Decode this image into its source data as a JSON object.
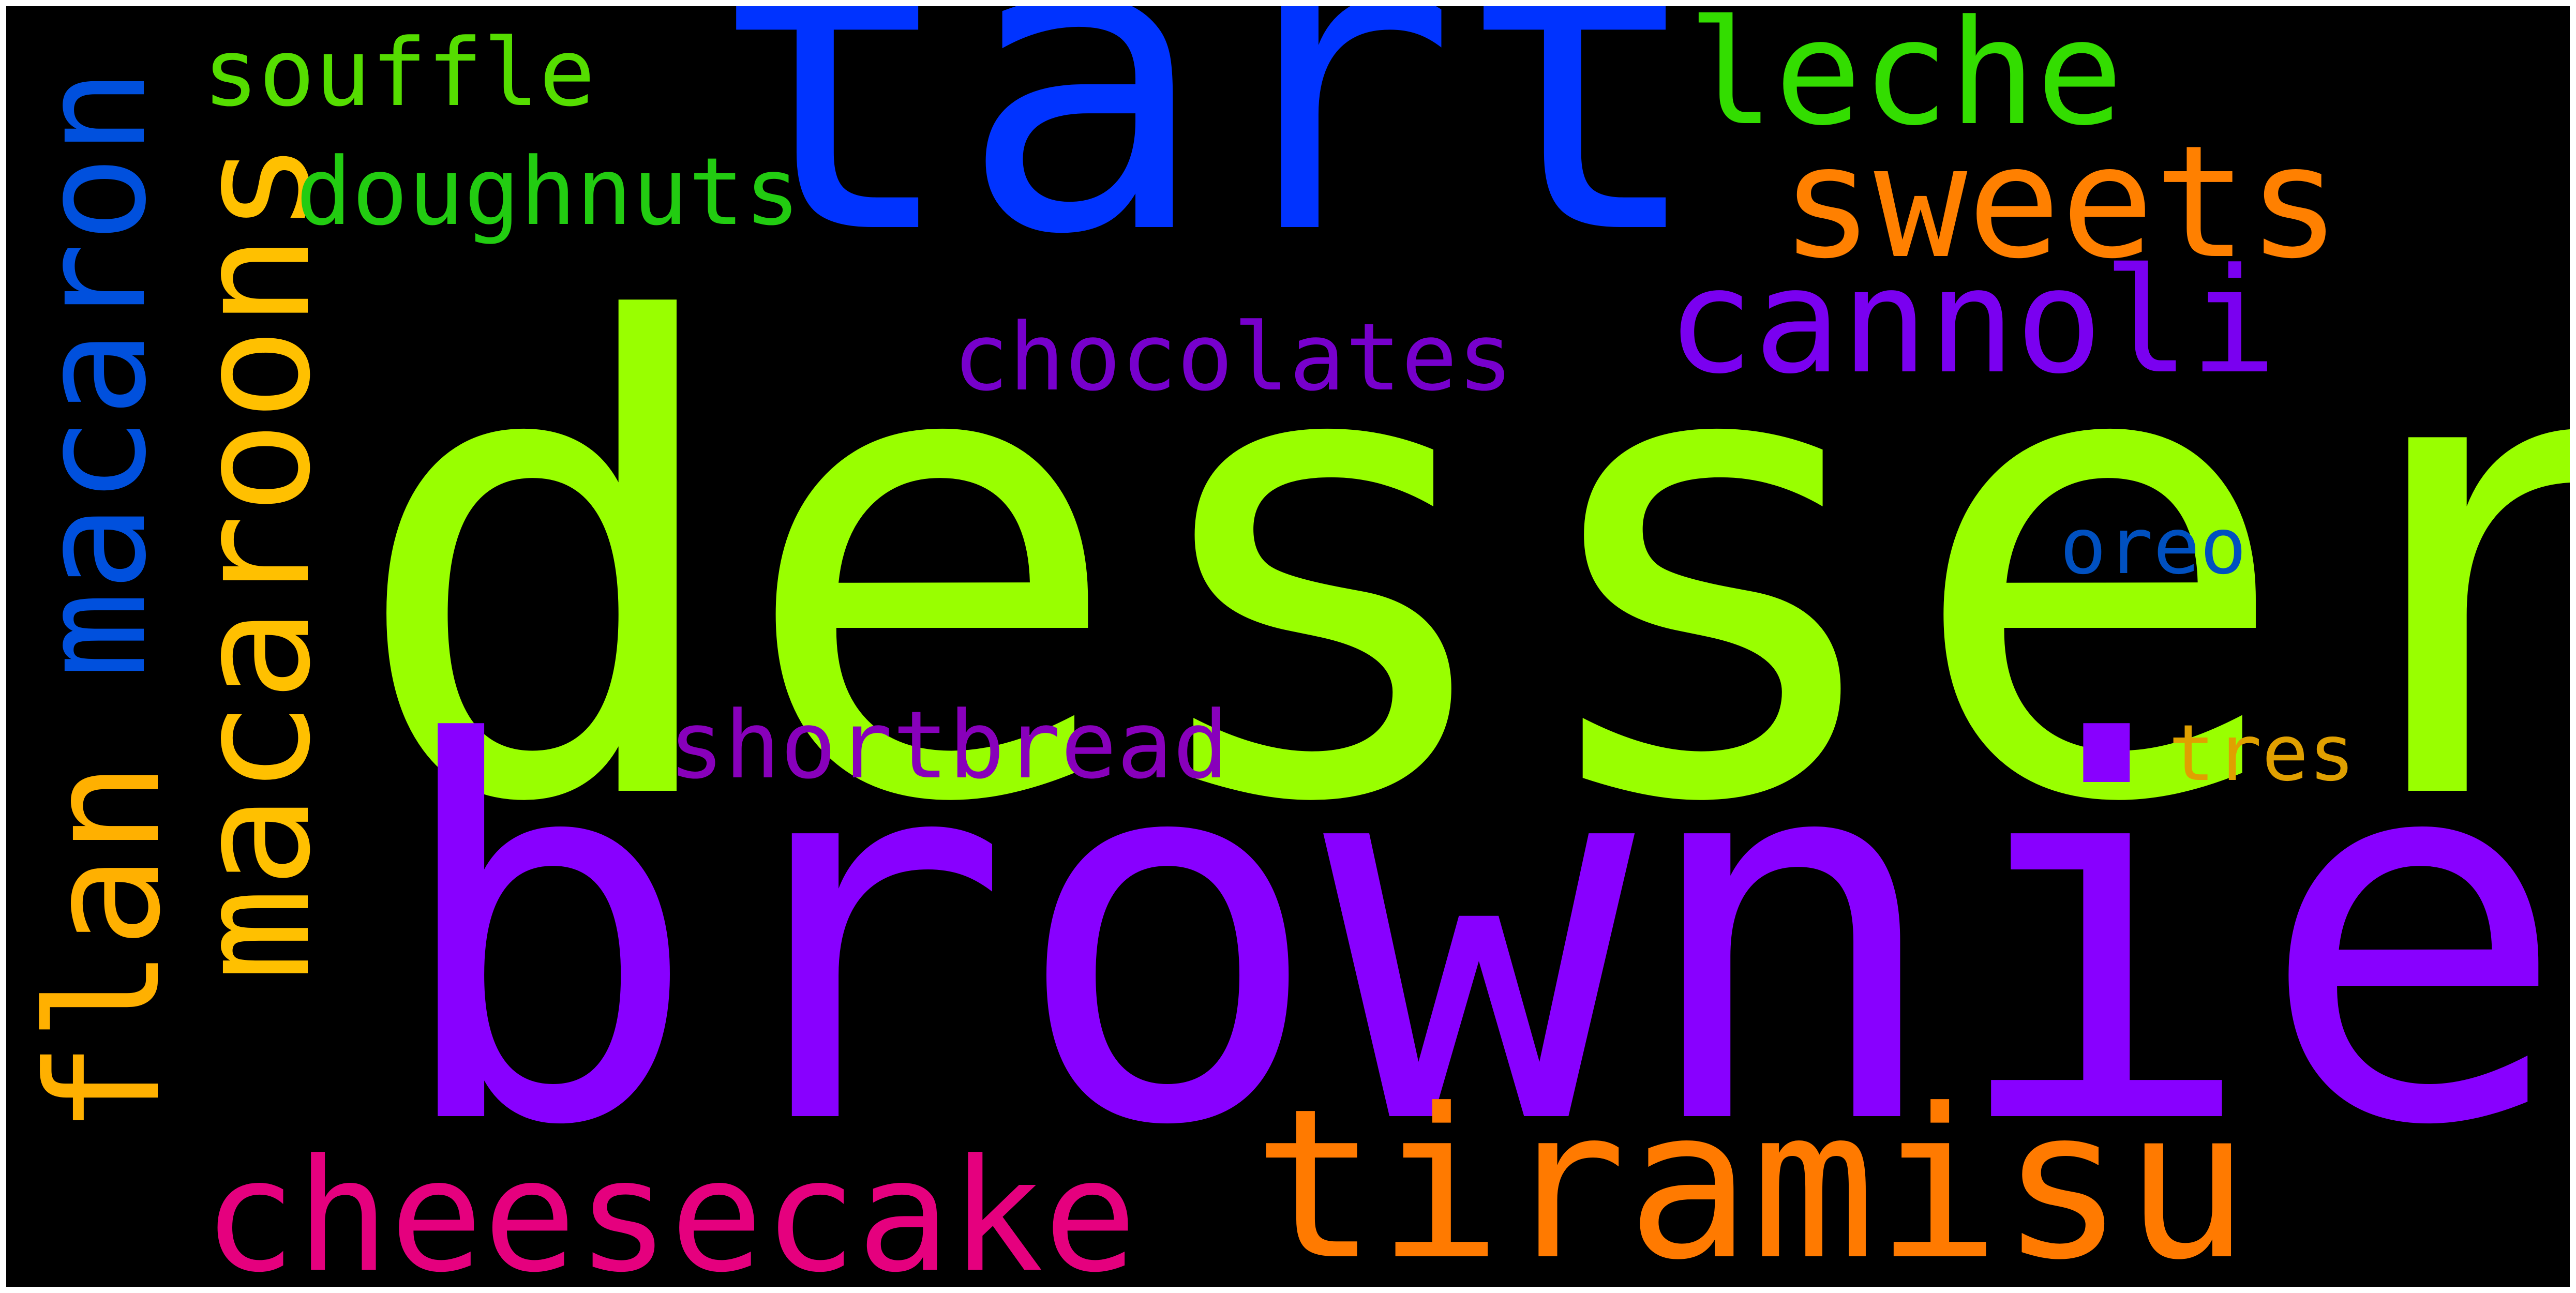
{
  "words": [
    {
      "id": "dessert",
      "text": "dessert",
      "color": "#99ff00",
      "orientation": "horizontal"
    },
    {
      "id": "brownie",
      "text": "brownie",
      "color": "#8800ff",
      "orientation": "horizontal"
    },
    {
      "id": "tart",
      "text": "tart",
      "color": "#0033ff",
      "orientation": "horizontal"
    },
    {
      "id": "tiramisu",
      "text": "tiramisu",
      "color": "#ff7a00",
      "orientation": "horizontal"
    },
    {
      "id": "cheesecake",
      "text": "cheesecake",
      "color": "#e5007e",
      "orientation": "horizontal"
    },
    {
      "id": "flan",
      "text": "flan",
      "color": "#ffb000",
      "orientation": "vertical"
    },
    {
      "id": "macaroons",
      "text": "macaroons",
      "color": "#ffc000",
      "orientation": "vertical"
    },
    {
      "id": "macaron",
      "text": "macaron",
      "color": "#0050dd",
      "orientation": "vertical"
    },
    {
      "id": "sweets",
      "text": "sweets",
      "color": "#ff8000",
      "orientation": "horizontal"
    },
    {
      "id": "leche",
      "text": "leche",
      "color": "#33dd00",
      "orientation": "horizontal"
    },
    {
      "id": "cannoli",
      "text": "cannoli",
      "color": "#7a00f0",
      "orientation": "horizontal"
    },
    {
      "id": "souffle",
      "text": "souffle",
      "color": "#55dd00",
      "orientation": "horizontal"
    },
    {
      "id": "doughnuts",
      "text": "doughnuts",
      "color": "#22cc11",
      "orientation": "horizontal"
    },
    {
      "id": "chocolates",
      "text": "chocolates",
      "color": "#7700cc",
      "orientation": "horizontal"
    },
    {
      "id": "shortbread",
      "text": "shortbread",
      "color": "#8800bb",
      "orientation": "horizontal"
    },
    {
      "id": "oreo",
      "text": "oreo",
      "color": "#0050c0",
      "orientation": "horizontal"
    },
    {
      "id": "tres",
      "text": "tres",
      "color": "#e0a000",
      "orientation": "horizontal"
    }
  ]
}
